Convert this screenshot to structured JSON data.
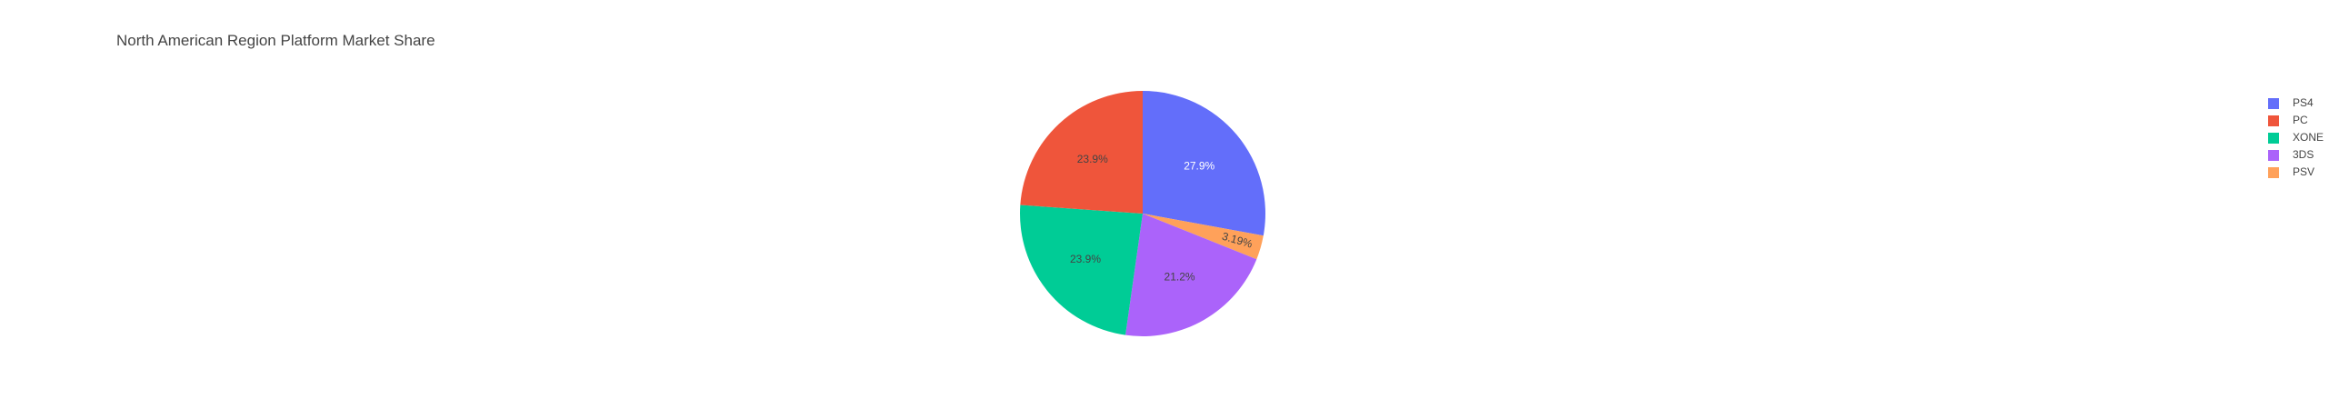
{
  "chart_data": {
    "type": "pie",
    "title": "North American Region Platform Market Share",
    "slices": [
      {
        "label": "PS4",
        "percent": 27.9,
        "percent_text": "27.9%",
        "color": "#636efa",
        "text_color": "#ffffff"
      },
      {
        "label": "PSV",
        "percent": 3.19,
        "percent_text": "3.19%",
        "color": "#ffa15a",
        "text_color": "#444444"
      },
      {
        "label": "3DS",
        "percent": 21.2,
        "percent_text": "21.2%",
        "color": "#ab63fa",
        "text_color": "#444444"
      },
      {
        "label": "XONE",
        "percent": 23.9,
        "percent_text": "23.9%",
        "color": "#00cc96",
        "text_color": "#444444"
      },
      {
        "label": "PC",
        "percent": 23.9,
        "percent_text": "23.9%",
        "color": "#ef553b",
        "text_color": "#444444"
      }
    ],
    "legend": {
      "placement": "top-right",
      "items": [
        {
          "label": "PS4",
          "color": "#636efa"
        },
        {
          "label": "PC",
          "color": "#ef553b"
        },
        {
          "label": "XONE",
          "color": "#00cc96"
        },
        {
          "label": "3DS",
          "color": "#ab63fa"
        },
        {
          "label": "PSV",
          "color": "#ffa15a"
        }
      ]
    },
    "direction": "clockwise",
    "start_angle": "top"
  }
}
